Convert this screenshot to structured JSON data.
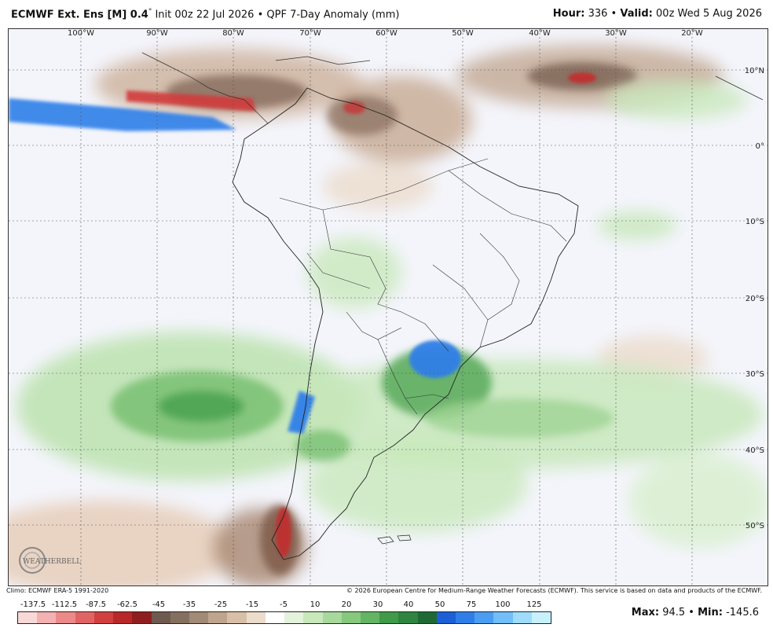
{
  "header": {
    "model": "ECMWF Ext.  Ens [M] 0.4",
    "deg": "°",
    "init": " Init 00z 22 Jul 2026",
    "bullet1": " • ",
    "field": "QPF 7-Day Anomaly (mm)",
    "hour_label": "Hour:",
    "hour_value": " 336 ",
    "bullet2": "• ",
    "valid_label": "Valid:",
    "valid_value": " 00z Wed 5 Aug 2026"
  },
  "map": {
    "lon_labels": [
      "100°W",
      "90°W",
      "80°W",
      "70°W",
      "60°W",
      "50°W",
      "40°W",
      "30°W",
      "20°W"
    ],
    "lat_labels": [
      "10°N",
      "0°",
      "10°S",
      "20°S",
      "30°S",
      "40°S",
      "50°S"
    ]
  },
  "logo": {
    "text": "WEATHERBELL"
  },
  "footer": {
    "climo": "Climo: ECMWF ERA-5 1991-2020",
    "copyright": "© 2026 European Centre for Medium-Range Weather Forecasts (ECMWF). This service is based on data and products of the ECMWF."
  },
  "colorbar": {
    "ticks": [
      "-137.5",
      "-112.5",
      "-87.5",
      "-62.5",
      "-45",
      "-35",
      "-25",
      "-15",
      "-5",
      "10",
      "20",
      "30",
      "40",
      "50",
      "75",
      "100",
      "125"
    ],
    "colors": [
      "#f9d8d8",
      "#f3b1b1",
      "#ec8a8a",
      "#e06464",
      "#d23f3f",
      "#b82828",
      "#8f1f1f",
      "#6e5a4f",
      "#85705f",
      "#a18b76",
      "#bfa58d",
      "#d8c0a8",
      "#ecdccb",
      "#ffffff",
      "#e4f3dc",
      "#c8e8bc",
      "#a8d99c",
      "#86c97e",
      "#63b563",
      "#3f9a49",
      "#2f8440",
      "#1f6a34",
      "#1c5fd6",
      "#2f7ee8",
      "#4b9df2",
      "#72bef8",
      "#9fdcfb",
      "#c7f2fd"
    ]
  },
  "stats": {
    "max_label": "Max:",
    "max_value": " 94.5 • ",
    "min_label": "Min:",
    "min_value": " -145.6"
  }
}
